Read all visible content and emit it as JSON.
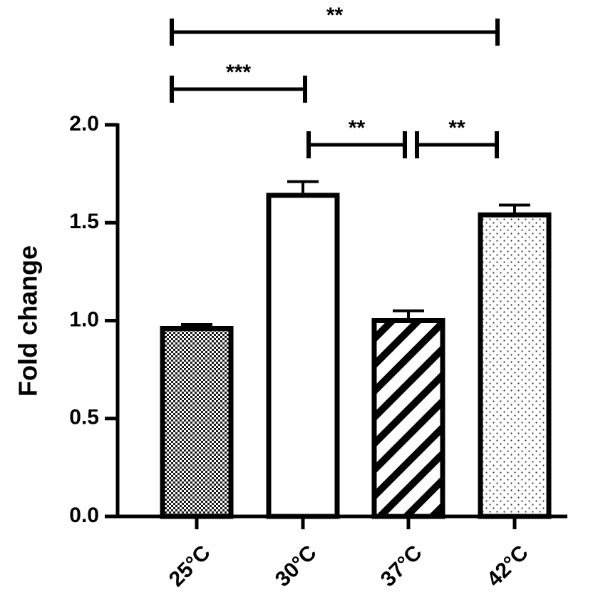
{
  "chart_data": {
    "type": "bar",
    "categories": [
      "25°C",
      "30°C",
      "37°C",
      "42°C"
    ],
    "values": [
      0.96,
      1.64,
      1.0,
      1.54
    ],
    "errors": [
      0.02,
      0.07,
      0.05,
      0.05
    ],
    "patterns": [
      "checker",
      "none",
      "diagonal",
      "dots"
    ],
    "title": "",
    "xlabel": "",
    "ylabel": "Fold change",
    "ylim": [
      0,
      2.0
    ],
    "yticks": [
      "0.0",
      "0.5",
      "1.0",
      "1.5",
      "2.0"
    ],
    "grid": false,
    "significance": [
      {
        "from": 0,
        "to": 3,
        "label": "**"
      },
      {
        "from": 0,
        "to": 1,
        "label": "***"
      },
      {
        "from": 1,
        "to": 2,
        "label": "**"
      },
      {
        "from": 2,
        "to": 3,
        "label": "**"
      }
    ]
  }
}
